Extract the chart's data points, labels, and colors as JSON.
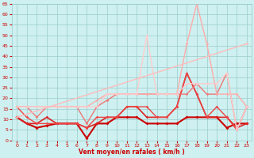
{
  "background_color": "#cef0f0",
  "grid_color": "#99cccc",
  "xlabel": "Vent moyen/en rafales ( km/h )",
  "xlabel_color": "#cc0000",
  "tick_color": "#cc0000",
  "xlim": [
    -0.5,
    23.5
  ],
  "ylim": [
    0,
    65
  ],
  "yticks": [
    0,
    5,
    10,
    15,
    20,
    25,
    30,
    35,
    40,
    45,
    50,
    55,
    60,
    65
  ],
  "xticks": [
    0,
    1,
    2,
    3,
    4,
    5,
    6,
    7,
    8,
    9,
    10,
    11,
    12,
    13,
    14,
    15,
    16,
    17,
    18,
    19,
    20,
    21,
    22,
    23
  ],
  "series": [
    {
      "x": [
        0,
        1,
        2,
        3,
        4,
        5,
        6,
        7,
        8,
        9,
        10,
        11,
        12,
        13,
        14,
        15,
        16,
        17,
        18,
        19,
        20,
        21,
        22,
        23
      ],
      "y": [
        11,
        8,
        6,
        7,
        8,
        8,
        8,
        1,
        8,
        8,
        11,
        11,
        11,
        8,
        8,
        8,
        8,
        11,
        11,
        11,
        11,
        6,
        8,
        8
      ],
      "color": "#cc0000",
      "lw": 1.5,
      "marker": "D",
      "ms": 2.0
    },
    {
      "x": [
        0,
        1,
        2,
        3,
        4,
        5,
        6,
        7,
        8,
        9,
        10,
        11,
        12,
        13,
        14,
        15,
        16,
        17,
        18,
        19,
        20,
        21,
        22,
        23
      ],
      "y": [
        11,
        8,
        8,
        11,
        8,
        8,
        8,
        6,
        8,
        11,
        11,
        16,
        16,
        11,
        11,
        11,
        16,
        32,
        22,
        11,
        11,
        11,
        6,
        8
      ],
      "color": "#dd2222",
      "lw": 1.2,
      "marker": "D",
      "ms": 1.8
    },
    {
      "x": [
        0,
        1,
        2,
        3,
        4,
        5,
        6,
        7,
        8,
        9,
        10,
        11,
        12,
        13,
        14,
        15,
        16,
        17,
        18,
        19,
        20,
        21,
        22,
        23
      ],
      "y": [
        16,
        11,
        8,
        8,
        8,
        8,
        8,
        6,
        11,
        11,
        11,
        16,
        16,
        16,
        11,
        11,
        16,
        32,
        22,
        11,
        16,
        11,
        5,
        16
      ],
      "color": "#ee4444",
      "lw": 1.0,
      "marker": "D",
      "ms": 1.8
    },
    {
      "x": [
        0,
        1,
        2,
        3,
        4,
        5,
        6,
        7,
        8,
        9,
        10,
        11,
        12,
        13,
        14,
        15,
        16,
        17,
        18,
        19,
        20,
        21,
        22,
        23
      ],
      "y": [
        16,
        16,
        11,
        16,
        16,
        16,
        16,
        8,
        16,
        19,
        22,
        22,
        22,
        22,
        22,
        22,
        22,
        22,
        27,
        22,
        22,
        32,
        5,
        16
      ],
      "color": "#ee7777",
      "lw": 1.0,
      "marker": "D",
      "ms": 1.8
    },
    {
      "x": [
        0,
        1,
        2,
        3,
        4,
        5,
        6,
        7,
        8,
        9,
        10,
        11,
        12,
        13,
        14,
        15,
        16,
        17,
        18,
        19,
        20,
        21,
        22,
        23
      ],
      "y": [
        16,
        16,
        16,
        16,
        16,
        16,
        16,
        16,
        19,
        22,
        22,
        22,
        22,
        22,
        22,
        22,
        22,
        46,
        65,
        46,
        22,
        22,
        22,
        16
      ],
      "color": "#ffaaaa",
      "lw": 1.0,
      "marker": "D",
      "ms": 1.8
    },
    {
      "x": [
        0,
        1,
        2,
        3,
        4,
        5,
        6,
        7,
        8,
        9,
        10,
        11,
        12,
        13,
        14,
        15,
        16,
        17,
        18,
        19,
        20,
        21,
        22,
        23
      ],
      "y": [
        16,
        16,
        16,
        16,
        16,
        16,
        16,
        16,
        16,
        22,
        22,
        22,
        22,
        50,
        22,
        22,
        22,
        27,
        27,
        27,
        27,
        32,
        5,
        16
      ],
      "color": "#ffcccc",
      "lw": 1.0,
      "marker": "D",
      "ms": 1.8
    },
    {
      "x": [
        0,
        23
      ],
      "y": [
        11,
        46
      ],
      "color": "#ffbbbb",
      "lw": 1.0,
      "marker": "D",
      "ms": 1.8
    }
  ]
}
